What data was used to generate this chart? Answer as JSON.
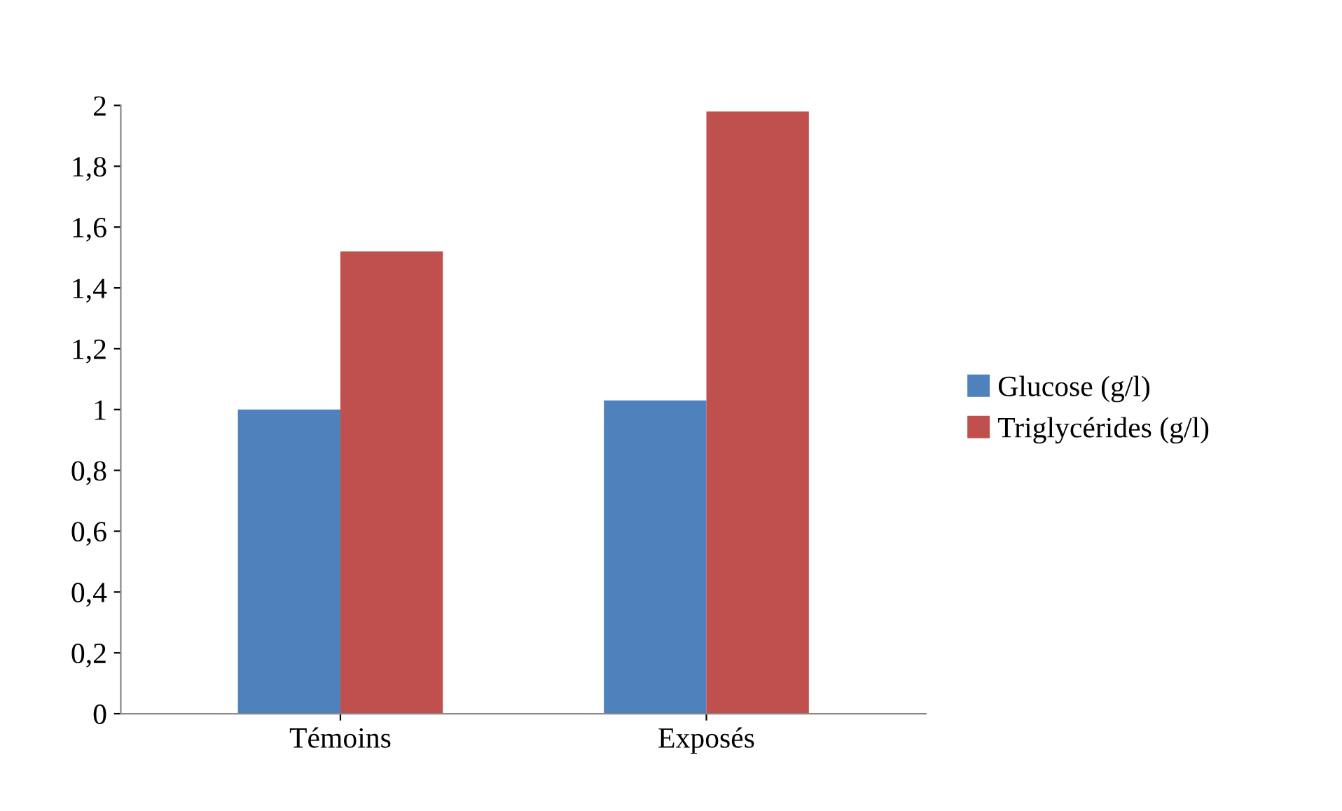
{
  "chart_data": {
    "type": "bar",
    "categories": [
      "Témoins",
      "Exposés"
    ],
    "series": [
      {
        "name": "Glucose (g/l)",
        "color": "#4f81bd",
        "values": [
          1.0,
          1.03
        ]
      },
      {
        "name": "Triglycérides (g/l)",
        "color": "#c0504d",
        "values": [
          1.52,
          1.98
        ]
      }
    ],
    "ylim": [
      0,
      2
    ],
    "yticks": [
      0,
      {
        "value": 0.2,
        "label": "0,2"
      },
      {
        "value": 0.4,
        "label": "0,4"
      },
      {
        "value": 0.6,
        "label": "0,6"
      },
      {
        "value": 0.8,
        "label": "0,8"
      },
      1,
      {
        "value": 1.2,
        "label": "1,2"
      },
      {
        "value": 1.4,
        "label": "1,4"
      },
      {
        "value": 1.6,
        "label": "1,6"
      },
      {
        "value": 1.8,
        "label": "1,8"
      },
      2
    ],
    "grid": false,
    "legend": "right"
  }
}
